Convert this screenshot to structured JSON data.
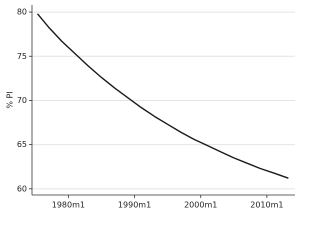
{
  "chart_data": {
    "type": "line",
    "ylabel": "% PI",
    "x": [
      "1975m5",
      "1977m1",
      "1979m1",
      "1981m1",
      "1983m1",
      "1985m1",
      "1987m1",
      "1989m1",
      "1991m1",
      "1993m1",
      "1995m1",
      "1997m1",
      "1999m1",
      "2001m1",
      "2003m1",
      "2005m1",
      "2007m1",
      "2009m1",
      "2011m1",
      "2013m4"
    ],
    "series": [
      {
        "color": "#1a1a1a",
        "values": [
          79.8,
          78.3,
          76.7,
          75.3,
          73.9,
          72.6,
          71.4,
          70.3,
          69.2,
          68.2,
          67.3,
          66.4,
          65.6,
          64.9,
          64.2,
          63.5,
          62.9,
          62.3,
          61.8,
          61.2
        ]
      }
    ],
    "xlim": [
      "1974m7",
      "2014m4"
    ],
    "xticks": [
      "1980m1",
      "1990m1",
      "2000m1",
      "2010m1"
    ],
    "ylim": [
      59.3,
      80.8
    ],
    "yticks": [
      60,
      65,
      70,
      75,
      80
    ],
    "grid": true
  }
}
